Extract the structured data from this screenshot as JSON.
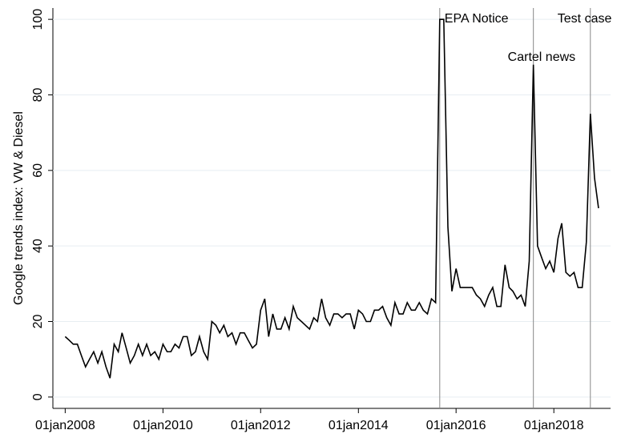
{
  "chart_data": {
    "type": "line",
    "y_label": "Google trends index: VW & Diesel",
    "x": [
      "2008-01-01",
      "2008-02-01",
      "2008-03-01",
      "2008-04-01",
      "2008-05-01",
      "2008-06-01",
      "2008-07-01",
      "2008-08-01",
      "2008-09-01",
      "2008-10-01",
      "2008-11-01",
      "2008-12-01",
      "2009-01-01",
      "2009-02-01",
      "2009-03-01",
      "2009-04-01",
      "2009-05-01",
      "2009-06-01",
      "2009-07-01",
      "2009-08-01",
      "2009-09-01",
      "2009-10-01",
      "2009-11-01",
      "2009-12-01",
      "2010-01-01",
      "2010-02-01",
      "2010-03-01",
      "2010-04-01",
      "2010-05-01",
      "2010-06-01",
      "2010-07-01",
      "2010-08-01",
      "2010-09-01",
      "2010-10-01",
      "2010-11-01",
      "2010-12-01",
      "2011-01-01",
      "2011-02-01",
      "2011-03-01",
      "2011-04-01",
      "2011-05-01",
      "2011-06-01",
      "2011-07-01",
      "2011-08-01",
      "2011-09-01",
      "2011-10-01",
      "2011-11-01",
      "2011-12-01",
      "2012-01-01",
      "2012-02-01",
      "2012-03-01",
      "2012-04-01",
      "2012-05-01",
      "2012-06-01",
      "2012-07-01",
      "2012-08-01",
      "2012-09-01",
      "2012-10-01",
      "2012-11-01",
      "2012-12-01",
      "2013-01-01",
      "2013-02-01",
      "2013-03-01",
      "2013-04-01",
      "2013-05-01",
      "2013-06-01",
      "2013-07-01",
      "2013-08-01",
      "2013-09-01",
      "2013-10-01",
      "2013-11-01",
      "2013-12-01",
      "2014-01-01",
      "2014-02-01",
      "2014-03-01",
      "2014-04-01",
      "2014-05-01",
      "2014-06-01",
      "2014-07-01",
      "2014-08-01",
      "2014-09-01",
      "2014-10-01",
      "2014-11-01",
      "2014-12-01",
      "2015-01-01",
      "2015-02-01",
      "2015-03-01",
      "2015-04-01",
      "2015-05-01",
      "2015-06-01",
      "2015-07-01",
      "2015-08-01",
      "2015-09-01",
      "2015-10-01",
      "2015-11-01",
      "2015-12-01",
      "2016-01-01",
      "2016-02-01",
      "2016-03-01",
      "2016-04-01",
      "2016-05-01",
      "2016-06-01",
      "2016-07-01",
      "2016-08-01",
      "2016-09-01",
      "2016-10-01",
      "2016-11-01",
      "2016-12-01",
      "2017-01-01",
      "2017-02-01",
      "2017-03-01",
      "2017-04-01",
      "2017-05-01",
      "2017-06-01",
      "2017-07-01",
      "2017-08-01",
      "2017-09-01",
      "2017-10-01",
      "2017-11-01",
      "2017-12-01",
      "2018-01-01",
      "2018-02-01",
      "2018-03-01",
      "2018-04-01",
      "2018-05-01",
      "2018-06-01",
      "2018-07-01",
      "2018-08-01",
      "2018-09-01",
      "2018-10-01",
      "2018-11-01",
      "2018-12-01"
    ],
    "series": [
      {
        "color": "#000000",
        "values": [
          16,
          15,
          14,
          14,
          11,
          8,
          10,
          12,
          9,
          12,
          8,
          5,
          14,
          12,
          17,
          13,
          9,
          11,
          14,
          11,
          14,
          11,
          12,
          10,
          14,
          12,
          12,
          14,
          13,
          16,
          16,
          11,
          12,
          16,
          12,
          10,
          20,
          19,
          17,
          19,
          16,
          17,
          14,
          17,
          17,
          15,
          13,
          14,
          23,
          26,
          16,
          22,
          18,
          18,
          21,
          18,
          24,
          21,
          20,
          19,
          18,
          21,
          20,
          26,
          21,
          19,
          22,
          22,
          21,
          22,
          22,
          18,
          23,
          22,
          20,
          20,
          23,
          23,
          24,
          21,
          19,
          25,
          22,
          22,
          25,
          23,
          23,
          25,
          23,
          22,
          26,
          25,
          100,
          100,
          45,
          28,
          34,
          29,
          29,
          29,
          29,
          27,
          26,
          24,
          27,
          29,
          24,
          24,
          35,
          29,
          28,
          26,
          27,
          24,
          36,
          88,
          40,
          37,
          34,
          36,
          33,
          42,
          46,
          33,
          32,
          33,
          29,
          29,
          41,
          75,
          58,
          50
        ]
      }
    ],
    "xlim": [
      "2007-10-01",
      "2019-03-01"
    ],
    "xticks": [
      {
        "value": "2008-01-01",
        "label": "01jan2008"
      },
      {
        "value": "2010-01-01",
        "label": "01jan2010"
      },
      {
        "value": "2012-01-01",
        "label": "01jan2012"
      },
      {
        "value": "2014-01-01",
        "label": "01jan2014"
      },
      {
        "value": "2016-01-01",
        "label": "01jan2016"
      },
      {
        "value": "2018-01-01",
        "label": "01jan2018"
      }
    ],
    "ylim": [
      -3,
      103
    ],
    "yticks": [
      0,
      20,
      40,
      60,
      80,
      100
    ],
    "grid": true,
    "annotations": [
      {
        "x": "2015-09-01",
        "label": "EPA Notice"
      },
      {
        "x": "2017-08-01",
        "label": "Cartel news"
      },
      {
        "x": "2018-10-01",
        "label": "Test case"
      }
    ]
  }
}
